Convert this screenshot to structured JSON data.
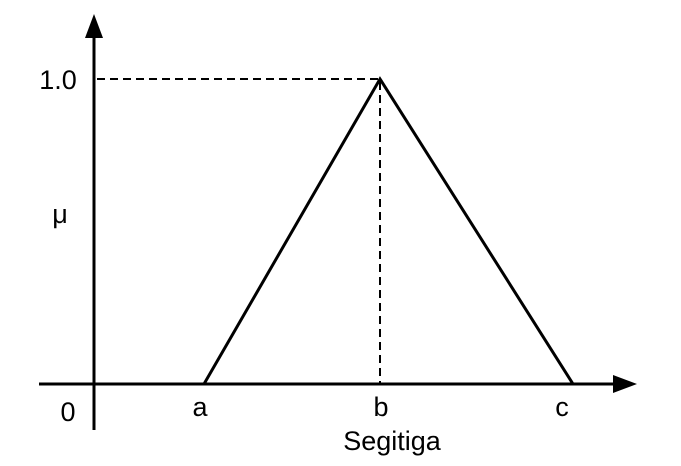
{
  "diagram": {
    "y_axis_symbol": "μ",
    "y_tick_top": "1.0",
    "origin_label": "0",
    "x_tick_a": "a",
    "x_tick_b": "b",
    "x_tick_c": "c",
    "x_caption": "Segitiga",
    "line_color": "#000000"
  }
}
